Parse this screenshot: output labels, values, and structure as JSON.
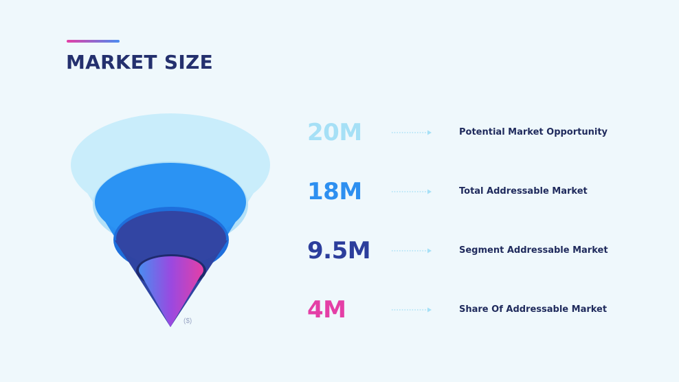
{
  "title": "MARKET SIZE",
  "unit_label": "($)",
  "colors": {
    "background": "#eff8fc",
    "title": "#24306e",
    "label": "#1f2a5c",
    "accent_bar": [
      "#e43fa6",
      "#4a8cf0"
    ],
    "arrow": "#a6e0f6"
  },
  "tiers": [
    {
      "value": "20M",
      "label": "Potential Market Opportunity",
      "color": "#a6e0f6"
    },
    {
      "value": "18M",
      "label": "Total Addressable Market",
      "color": "#2d8ff0"
    },
    {
      "value": "9.5M",
      "label": "Segment Addressable Market",
      "color": "#2c3e9c"
    },
    {
      "value": "4M",
      "label": "Share Of Addressable Market",
      "color": "#e43fa6"
    }
  ]
}
